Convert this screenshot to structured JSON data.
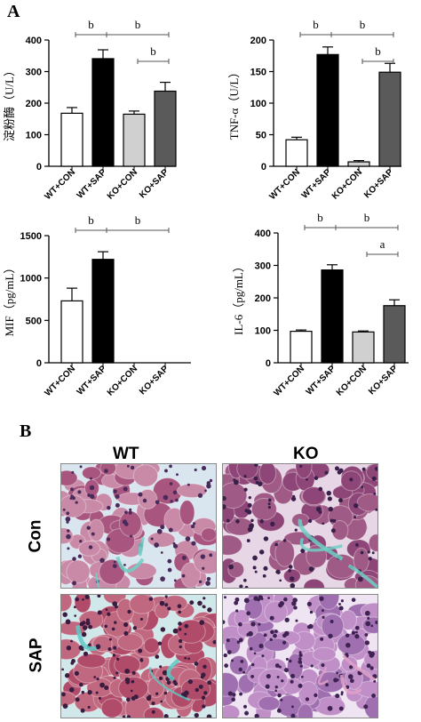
{
  "panels": {
    "A": "A",
    "B": "B"
  },
  "chart_data": [
    {
      "type": "bar",
      "ylabel": "淀粉酶（U/L）",
      "categories": [
        "WT+CON",
        "WT+SAP",
        "KO+CON",
        "KO+SAP"
      ],
      "values": [
        168,
        341,
        165,
        238
      ],
      "errors": [
        18,
        28,
        10,
        28
      ],
      "colors": [
        "#ffffff",
        "#000000",
        "#d0d0d0",
        "#5a5a5a"
      ],
      "ylim": [
        0,
        400
      ],
      "yticks": [
        0,
        100,
        200,
        300,
        400
      ],
      "significance": [
        {
          "from": 0,
          "to": 1,
          "label": "b",
          "level": 0
        },
        {
          "from": 1,
          "to": 3,
          "label": "b",
          "level": 0
        },
        {
          "from": 2,
          "to": 3,
          "label": "b",
          "level": 1
        }
      ]
    },
    {
      "type": "bar",
      "ylabel": "TNF-α（U/L）",
      "categories": [
        "WT+CON",
        "WT+SAP",
        "KO+CON",
        "KO+SAP"
      ],
      "values": [
        42,
        177,
        7,
        149
      ],
      "errors": [
        4,
        12,
        2,
        14
      ],
      "colors": [
        "#ffffff",
        "#000000",
        "#d0d0d0",
        "#5a5a5a"
      ],
      "ylim": [
        0,
        200
      ],
      "yticks": [
        0,
        50,
        100,
        150,
        200
      ],
      "significance": [
        {
          "from": 0,
          "to": 1,
          "label": "b",
          "level": 0
        },
        {
          "from": 1,
          "to": 3,
          "label": "b",
          "level": 0
        },
        {
          "from": 2,
          "to": 3,
          "label": "b",
          "level": 1
        }
      ]
    },
    {
      "type": "bar",
      "ylabel": "MIF（pg/mL）",
      "categories": [
        "WT+CON",
        "WT+SAP",
        "KO+CON",
        "KO+SAP"
      ],
      "values": [
        730,
        1220,
        0,
        0
      ],
      "errors": [
        150,
        90,
        0,
        0
      ],
      "colors": [
        "#ffffff",
        "#000000",
        "#d0d0d0",
        "#5a5a5a"
      ],
      "ylim": [
        0,
        1500
      ],
      "yticks": [
        0,
        500,
        1000,
        1500
      ],
      "significance": [
        {
          "from": 0,
          "to": 1,
          "label": "b",
          "level": 0
        },
        {
          "from": 1,
          "to": 3,
          "label": "b",
          "level": 0
        }
      ]
    },
    {
      "type": "bar",
      "ylabel": "IL-6（pg/mL）",
      "categories": [
        "WT+CON",
        "WT+SAP",
        "KO+CON",
        "KO+SAP"
      ],
      "values": [
        97,
        286,
        95,
        176
      ],
      "errors": [
        4,
        16,
        3,
        18
      ],
      "colors": [
        "#ffffff",
        "#000000",
        "#d0d0d0",
        "#5a5a5a"
      ],
      "ylim": [
        0,
        400
      ],
      "yticks": [
        0,
        100,
        200,
        300,
        400
      ],
      "significance": [
        {
          "from": 0,
          "to": 1,
          "label": "b",
          "level": 0
        },
        {
          "from": 1,
          "to": 3,
          "label": "b",
          "level": 0
        },
        {
          "from": 2,
          "to": 3,
          "label": "a",
          "level": 1
        }
      ]
    }
  ],
  "histology": {
    "columns": [
      "WT",
      "KO"
    ],
    "rows": [
      "Con",
      "SAP"
    ],
    "images": [
      {
        "name": "wt-con-image",
        "base": "#c98aa8",
        "cell": "#a8567f",
        "nuc": "#4a2a5a",
        "gap": "#d9e6f0",
        "accent": "#6fcfc4"
      },
      {
        "name": "ko-con-image",
        "base": "#a05a86",
        "cell": "#8e4577",
        "nuc": "#3a1f4a",
        "gap": "#e6d6e6",
        "accent": "#6fcfc4"
      },
      {
        "name": "wt-sap-image",
        "base": "#c0687f",
        "cell": "#b04c6a",
        "nuc": "#3a1c40",
        "gap": "#d0e8ea",
        "accent": "#5fc9c4"
      },
      {
        "name": "ko-sap-image",
        "base": "#c08fc8",
        "cell": "#9f6fb0",
        "nuc": "#3d2252",
        "gap": "#efe4f2",
        "accent": "#e0a0c8"
      }
    ]
  }
}
